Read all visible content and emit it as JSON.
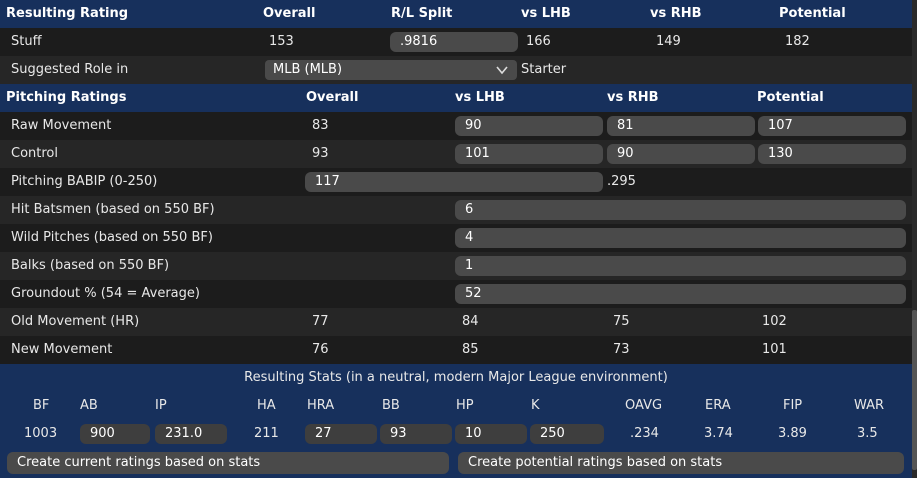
{
  "header": {
    "title": "Resulting Rating",
    "overall": "Overall",
    "rl_split": "R/L Split",
    "vs_lhb": "vs LHB",
    "vs_rhb": "vs RHB",
    "potential": "Potential"
  },
  "stuff": {
    "label": "Stuff",
    "overall": "153",
    "rl_split": ".9816",
    "vs_lhb": "166",
    "vs_rhb": "149",
    "potential": "182"
  },
  "role": {
    "label": "Suggested Role in",
    "league": "MLB (MLB)",
    "value": "Starter"
  },
  "pitching_header": {
    "title": "Pitching Ratings",
    "overall": "Overall",
    "vs_lhb": "vs LHB",
    "vs_rhb": "vs RHB",
    "potential": "Potential"
  },
  "raw_movement": {
    "label": "Raw Movement",
    "overall": "83",
    "vs_lhb": "90",
    "vs_rhb": "81",
    "potential": "107"
  },
  "control": {
    "label": "Control",
    "overall": "93",
    "vs_lhb": "101",
    "vs_rhb": "90",
    "potential": "130"
  },
  "babip": {
    "label": "Pitching BABIP (0-250)",
    "value": "117",
    "result": ".295"
  },
  "hit_batsmen": {
    "label": "Hit Batsmen (based on 550 BF)",
    "value": "6"
  },
  "wild_pitches": {
    "label": "Wild Pitches (based on 550 BF)",
    "value": "4"
  },
  "balks": {
    "label": "Balks (based on 550 BF)",
    "value": "1"
  },
  "groundout": {
    "label": "Groundout % (54 = Average)",
    "value": "52"
  },
  "old_movement": {
    "label": "Old Movement (HR)",
    "overall": "77",
    "vs_lhb": "84",
    "vs_rhb": "75",
    "potential": "102"
  },
  "new_movement": {
    "label": "New Movement",
    "overall": "76",
    "vs_lhb": "85",
    "vs_rhb": "73",
    "potential": "101"
  },
  "stats": {
    "title": "Resulting Stats (in a neutral, modern Major League environment)",
    "headers": [
      "BF",
      "AB",
      "IP",
      "HA",
      "HRA",
      "BB",
      "HP",
      "K",
      "OAVG",
      "ERA",
      "FIP",
      "WAR"
    ],
    "values": [
      "1003",
      "900",
      "231.0",
      "211",
      "27",
      "93",
      "10",
      "250",
      ".234",
      "3.74",
      "3.89",
      "3.5"
    ]
  },
  "buttons": {
    "create_current": "Create current ratings based on stats",
    "create_potential": "Create potential ratings based on stats"
  },
  "colors": {
    "header_bg": "#17305c",
    "row_dark": "#1c1c1c",
    "row_light": "#262626",
    "pill": "#4a4a4a"
  }
}
